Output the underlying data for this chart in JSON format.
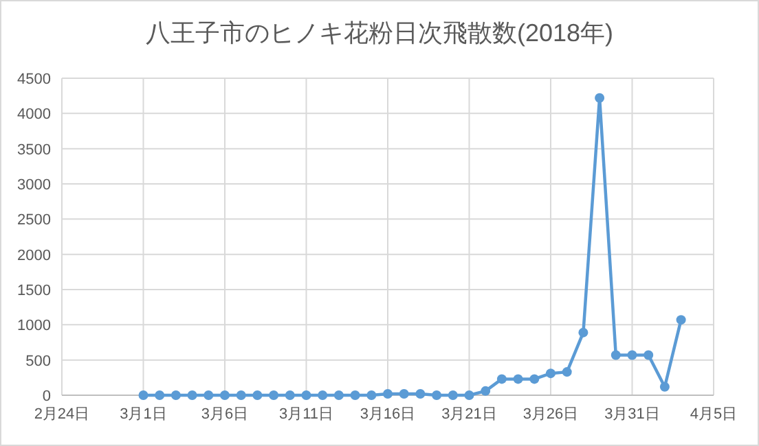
{
  "chart_data": {
    "type": "line",
    "title": "八王子市のヒノキ花粉日次飛散数(2018年)",
    "x": [
      "--03-01",
      "--03-02",
      "--03-03",
      "--03-04",
      "--03-05",
      "--03-06",
      "--03-07",
      "--03-08",
      "--03-09",
      "--03-10",
      "--03-11",
      "--03-12",
      "--03-13",
      "--03-14",
      "--03-15",
      "--03-16",
      "--03-17",
      "--03-18",
      "--03-19",
      "--03-20",
      "--03-21",
      "--03-22",
      "--03-23",
      "--03-24",
      "--03-25",
      "--03-26",
      "--03-27",
      "--03-28",
      "--03-29",
      "--03-30",
      "--03-31",
      "--04-01",
      "--04-02",
      "--04-03"
    ],
    "series": [
      {
        "color": "#5b9bd5",
        "values": [
          0,
          0,
          0,
          0,
          0,
          0,
          0,
          0,
          0,
          0,
          0,
          0,
          0,
          0,
          0,
          20,
          20,
          20,
          0,
          0,
          0,
          60,
          230,
          230,
          230,
          310,
          330,
          890,
          4220,
          570,
          570,
          570,
          120,
          1070
        ]
      }
    ],
    "xlim": [
      "--02-24",
      "--04-05"
    ],
    "xticks": [
      {
        "value": "--02-24",
        "label": "2月24日"
      },
      {
        "value": "--03-01",
        "label": "3月1日"
      },
      {
        "value": "--03-06",
        "label": "3月6日"
      },
      {
        "value": "--03-11",
        "label": "3月11日"
      },
      {
        "value": "--03-16",
        "label": "3月16日"
      },
      {
        "value": "--03-21",
        "label": "3月21日"
      },
      {
        "value": "--03-26",
        "label": "3月26日"
      },
      {
        "value": "--03-31",
        "label": "3月31日"
      },
      {
        "value": "--04-05",
        "label": "4月5日"
      }
    ],
    "ylim": [
      0,
      4500
    ],
    "yticks": [
      0,
      500,
      1000,
      1500,
      2000,
      2500,
      3000,
      3500,
      4000,
      4500
    ],
    "grid": true,
    "marker": "circle",
    "line_style": "solid"
  }
}
